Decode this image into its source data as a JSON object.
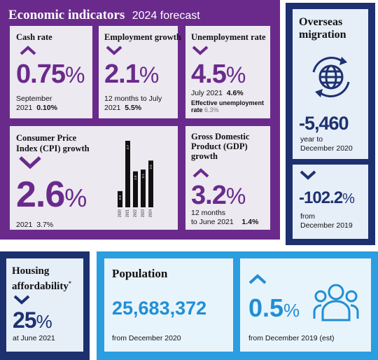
{
  "header": {
    "title": "Economic indicators",
    "subtitle": "2024 forecast"
  },
  "cash_rate": {
    "title": "Cash rate",
    "value": "0.75",
    "unit": "%",
    "note_line1": "September",
    "note_line2": "2021",
    "note_value": "0.10%",
    "trend": "up"
  },
  "employment": {
    "title": "Employment growth",
    "value": "2.1",
    "unit": "%",
    "note_line1": "12 months to July",
    "note_line2": "2021",
    "note_value": "5.5%",
    "trend": "down"
  },
  "unemployment": {
    "title": "Unemployment rate",
    "value": "4.5",
    "unit": "%",
    "note_label": "July 2021",
    "note_value": "4.6%",
    "effective_label_1": "Effective unemployment",
    "effective_label_2": "rate",
    "effective_value": "6.3%",
    "trend": "down"
  },
  "cpi": {
    "title_line1": "Consumer Price",
    "title_line2": "Index (CPI) growth",
    "value": "2.6",
    "unit": "%",
    "note_label": "2021",
    "note_value": "3.7%",
    "trend": "down"
  },
  "chart_data": {
    "type": "bar",
    "categories": [
      "2020",
      "2021",
      "2022",
      "2023",
      "2024"
    ],
    "values": [
      0.9,
      3.7,
      2.0,
      2.1,
      2.6
    ],
    "labels": [
      "0.9",
      "3.7",
      "2.0",
      "2.1",
      "2.6"
    ],
    "title": "",
    "xlabel": "",
    "ylabel": "",
    "ylim": [
      0,
      3.7
    ],
    "grid": false
  },
  "gdp": {
    "title_line1": "Gross Domestic",
    "title_line2": "Product (GDP)",
    "title_line3": "growth",
    "value": "3.2",
    "unit": "%",
    "note_line1": "12 months",
    "note_line2": "to June 2021",
    "note_value": "1.4%",
    "trend": "up"
  },
  "migration": {
    "title_line1": "Overseas",
    "title_line2": "migration",
    "value": "-5,460",
    "note_line1": "year to",
    "note_line2": "December 2020",
    "value2": "-102.2",
    "unit2": "%",
    "note2_line1": "from",
    "note2_line2": "December 2019",
    "icon": "globe-arrows-icon"
  },
  "housing": {
    "title_line1": "Housing",
    "title_line2": "affordability",
    "footnote_mark": "*",
    "value": "25",
    "unit": "%",
    "note": "at June 2021",
    "trend": "down"
  },
  "population": {
    "title": "Population",
    "value": "25,683,372",
    "note": "from December 2020",
    "growth_value": "0.5",
    "growth_unit": "%",
    "growth_note": "from December 2019 (est)",
    "icon": "people-icon",
    "trend": "up"
  },
  "colors": {
    "purple": "#6a2a8c",
    "navy": "#1d3170",
    "blue": "#2a9ee0"
  }
}
